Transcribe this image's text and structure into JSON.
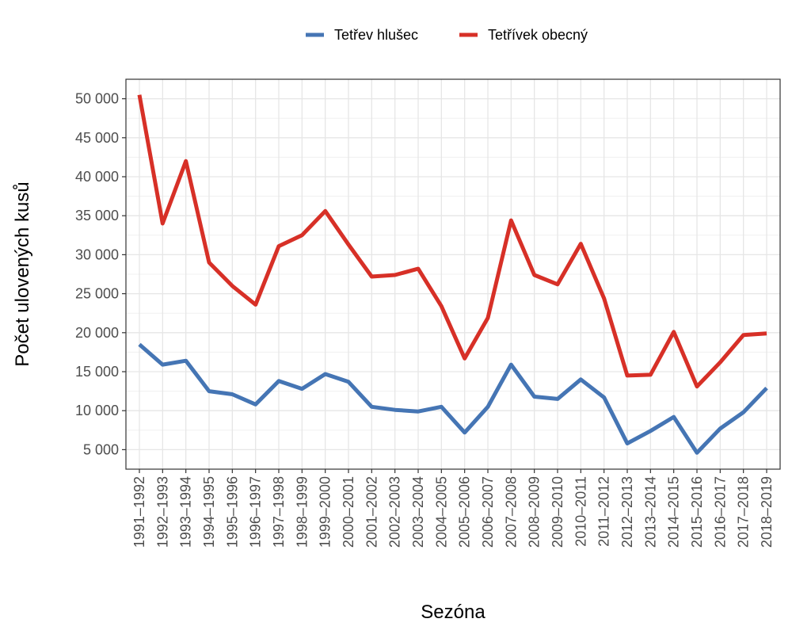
{
  "chart_data": {
    "type": "line",
    "xlabel": "Sezóna",
    "ylabel": "Počet ulovených kusů",
    "ylim": [
      2500,
      52500
    ],
    "yticks": [
      5000,
      10000,
      15000,
      20000,
      25000,
      30000,
      35000,
      40000,
      45000,
      50000
    ],
    "ytick_labels": [
      "5 000",
      "10 000",
      "15 000",
      "20 000",
      "25 000",
      "30 000",
      "35 000",
      "40 000",
      "45 000",
      "50 000"
    ],
    "grid": true,
    "legend_position": "top",
    "categories": [
      "1991–1992",
      "1992–1993",
      "1993–1994",
      "1994–1995",
      "1995–1996",
      "1996–1997",
      "1997–1998",
      "1998–1999",
      "1999–2000",
      "2000–2001",
      "2001–2002",
      "2002–2003",
      "2003–2004",
      "2004–2005",
      "2005–2006",
      "2006–2007",
      "2007–2008",
      "2008–2009",
      "2009–2010",
      "2010–2011",
      "2011–2012",
      "2012–2013",
      "2013–2014",
      "2014–2015",
      "2015–2016",
      "2016–2017",
      "2017–2018",
      "2018–2019"
    ],
    "series": [
      {
        "name": "Tetřev hlušec",
        "color": "#4575b4",
        "values": [
          18500,
          15900,
          16400,
          12500,
          12100,
          10800,
          13800,
          12800,
          14700,
          13700,
          10500,
          10100,
          9900,
          10500,
          7200,
          10500,
          15900,
          11800,
          11500,
          14000,
          11700,
          5800,
          7400,
          9200,
          4600,
          7700,
          9800,
          12900
        ]
      },
      {
        "name": "Tetřívek obecný",
        "color": "#d73027",
        "values": [
          50500,
          34000,
          42000,
          29000,
          26000,
          23600,
          31100,
          32500,
          35600,
          31300,
          27200,
          27400,
          28200,
          23400,
          16700,
          21900,
          34400,
          27400,
          26200,
          31400,
          24400,
          14500,
          14600,
          20100,
          13100,
          16200,
          19700,
          19900
        ]
      }
    ]
  }
}
